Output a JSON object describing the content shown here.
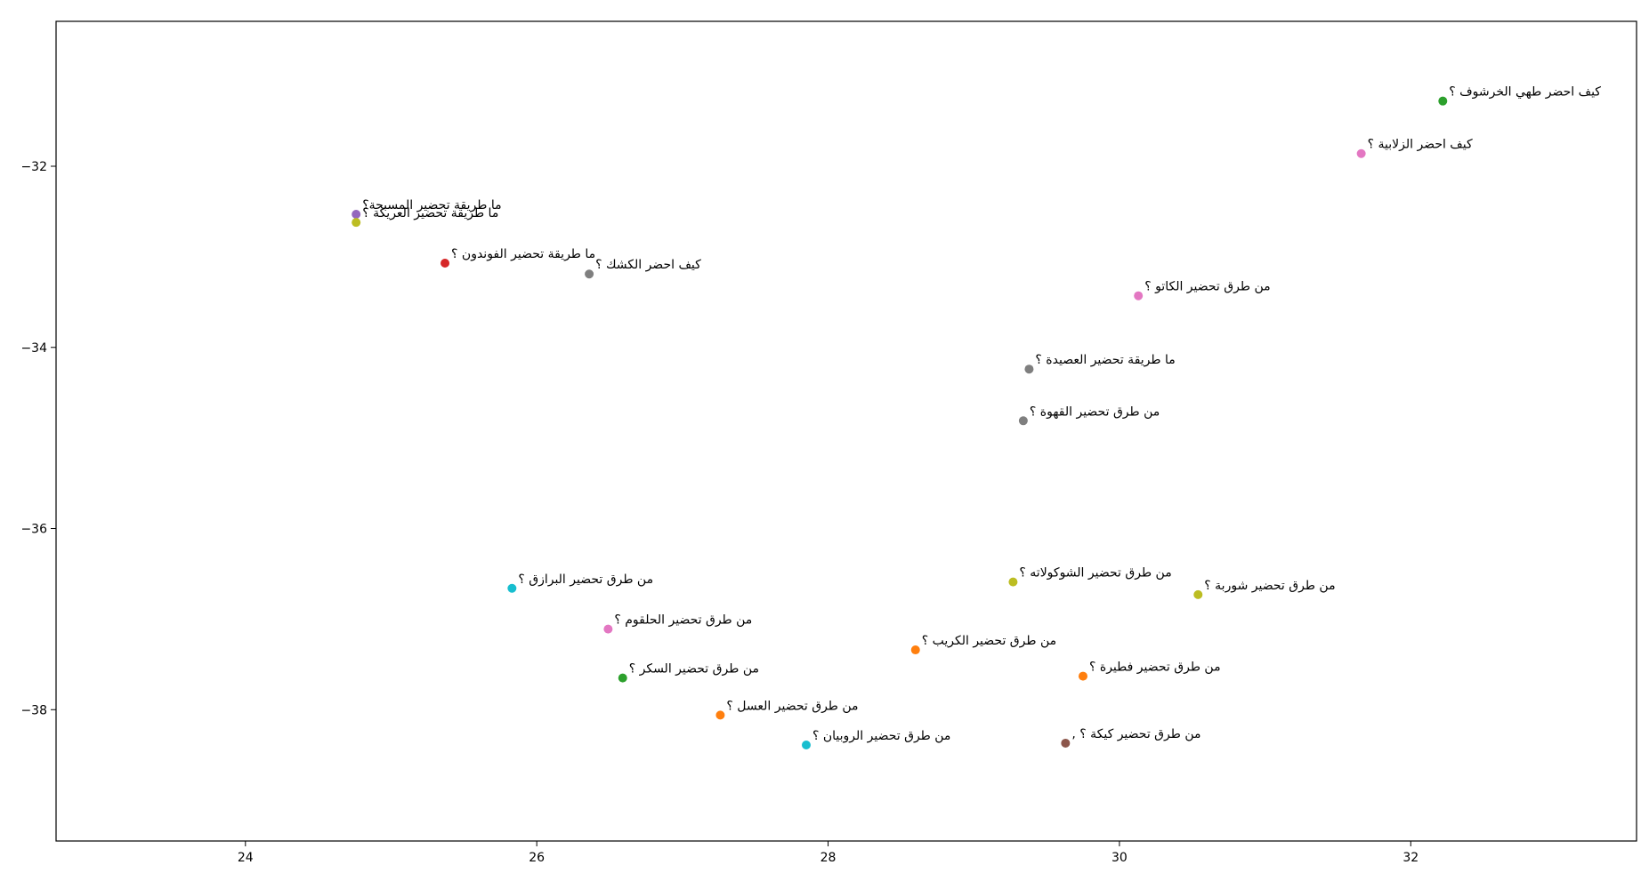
{
  "chart_data": {
    "type": "scatter",
    "title": "",
    "xlabel": "",
    "ylabel": "",
    "xlim": [
      22.7,
      33.55
    ],
    "ylim": [
      -39.45,
      -30.4
    ],
    "grid": false,
    "legend": "none",
    "x_ticks": [
      24,
      26,
      28,
      30,
      32
    ],
    "y_ticks": [
      -32,
      -34,
      -36,
      -38
    ],
    "points": [
      {
        "x": 32.22,
        "y": -31.28,
        "label": "كيف احضر طهي الخرشوف ؟",
        "color": "#2ca02c"
      },
      {
        "x": 31.66,
        "y": -31.86,
        "label": "كيف احضر الزلابية ؟",
        "color": "#e377c2"
      },
      {
        "x": 24.76,
        "y": -32.53,
        "label": "ما طريقة تحضير المسبحة؟",
        "color": "#9467bd"
      },
      {
        "x": 24.76,
        "y": -32.62,
        "label": "ما طريقة تحضير العريكة ؟",
        "color": "#bcbd22"
      },
      {
        "x": 25.37,
        "y": -33.07,
        "label": "ما طريقة تحضير الفوندون ؟",
        "color": "#d62728"
      },
      {
        "x": 26.36,
        "y": -33.19,
        "label": "كيف احضر الكشك ؟",
        "color": "#7f7f7f"
      },
      {
        "x": 30.13,
        "y": -33.43,
        "label": "من طرق تحضير الكاتو ؟",
        "color": "#e377c2"
      },
      {
        "x": 29.38,
        "y": -34.24,
        "label": "ما طريقة تحضير العصيدة ؟",
        "color": "#7f7f7f"
      },
      {
        "x": 29.34,
        "y": -34.81,
        "label": "من طرق تحضير القهوة ؟",
        "color": "#7f7f7f"
      },
      {
        "x": 25.83,
        "y": -36.66,
        "label": "من طرق تحضير البرازق ؟",
        "color": "#17becf"
      },
      {
        "x": 29.27,
        "y": -36.59,
        "label": "من طرق تحضير الشوكولاته ؟",
        "color": "#bcbd22"
      },
      {
        "x": 30.54,
        "y": -36.73,
        "label": "من طرق تحضير شوربة ؟",
        "color": "#bcbd22"
      },
      {
        "x": 26.49,
        "y": -37.11,
        "label": "من طرق تحضير الحلقوم ؟",
        "color": "#e377c2"
      },
      {
        "x": 28.6,
        "y": -37.34,
        "label": "من طرق تحضير الكريب ؟",
        "color": "#ff7f0e"
      },
      {
        "x": 26.59,
        "y": -37.65,
        "label": "من طرق تحضير السكر ؟",
        "color": "#2ca02c"
      },
      {
        "x": 29.75,
        "y": -37.63,
        "label": "من طرق تحضير فطيرة ؟",
        "color": "#ff7f0e"
      },
      {
        "x": 27.26,
        "y": -38.06,
        "label": "من طرق تحضير العسل ؟",
        "color": "#ff7f0e"
      },
      {
        "x": 27.85,
        "y": -38.39,
        "label": "من طرق تحضير الروبيان ؟",
        "color": "#17becf"
      },
      {
        "x": 29.63,
        "y": -38.37,
        "label": "من طرق تحضير كيكة ؟ ,",
        "color": "#8c564b"
      }
    ]
  }
}
